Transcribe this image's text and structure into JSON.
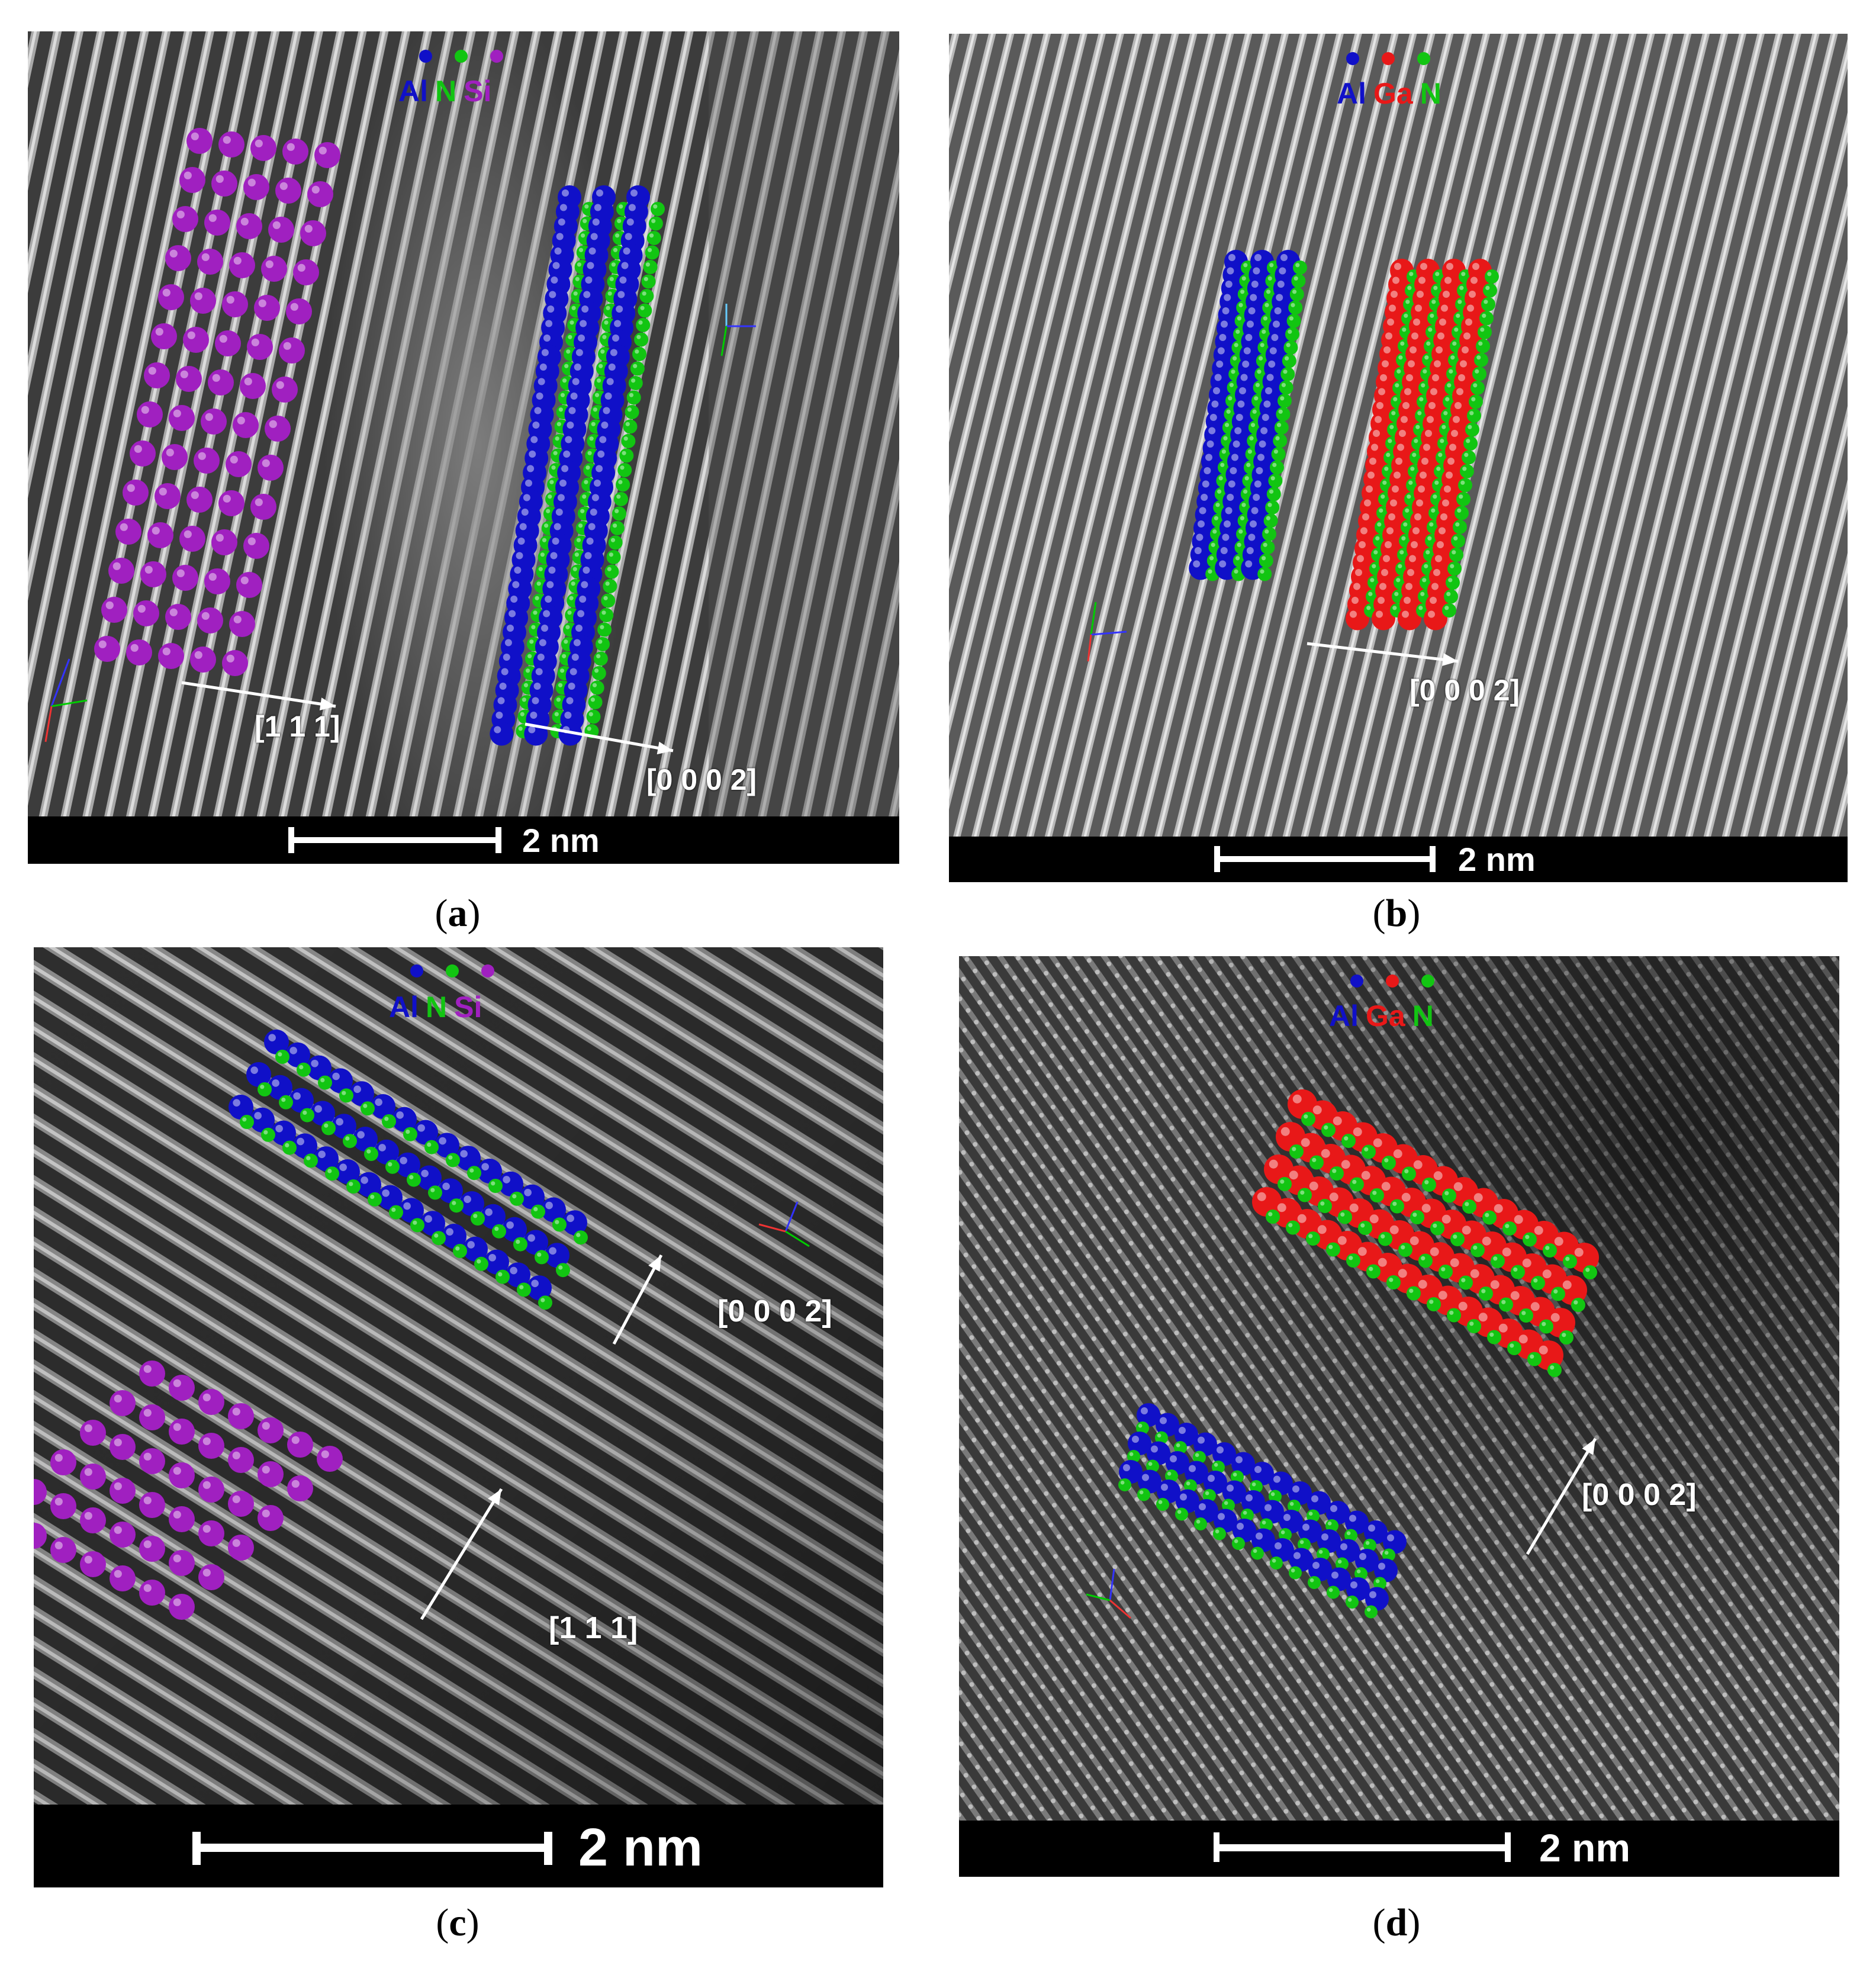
{
  "panels": [
    {
      "id": "a",
      "caption": "a",
      "scale_label": "2 nm",
      "legend": [
        {
          "symbol": "Al",
          "color": "#1010c8"
        },
        {
          "symbol": "N",
          "color": "#12c512"
        },
        {
          "symbol": "Si",
          "color": "#a020c0"
        }
      ],
      "directions": [
        "[1 1 1]",
        "[0 0 0 2]"
      ],
      "axes": [
        "x",
        "y",
        "z"
      ]
    },
    {
      "id": "b",
      "caption": "b",
      "scale_label": "2 nm",
      "legend": [
        {
          "symbol": "Al",
          "color": "#1010c8"
        },
        {
          "symbol": "Ga",
          "color": "#e81818"
        },
        {
          "symbol": "N",
          "color": "#12c512"
        }
      ],
      "directions": [
        "[0 0 0 2]"
      ],
      "axes": [
        "x",
        "y",
        "z"
      ]
    },
    {
      "id": "c",
      "caption": "c",
      "scale_label": "2 nm",
      "legend": [
        {
          "symbol": "Al",
          "color": "#1010c8"
        },
        {
          "symbol": "N",
          "color": "#12c512"
        },
        {
          "symbol": "Si",
          "color": "#a020c0"
        }
      ],
      "directions": [
        "[0 0 0 2]",
        "[1 1 1]"
      ],
      "axes": [
        "x",
        "y",
        "z"
      ]
    },
    {
      "id": "d",
      "caption": "d",
      "scale_label": "2 nm",
      "legend": [
        {
          "symbol": "Al",
          "color": "#1010c8"
        },
        {
          "symbol": "Ga",
          "color": "#e81818"
        },
        {
          "symbol": "N",
          "color": "#12c512"
        }
      ],
      "directions": [
        "[0 0 0 2]"
      ],
      "axes": [
        "x",
        "y",
        "z"
      ]
    }
  ],
  "colors": {
    "Al": "#1010c8",
    "N": "#12c512",
    "Si": "#a020c0",
    "Ga": "#e81818"
  }
}
